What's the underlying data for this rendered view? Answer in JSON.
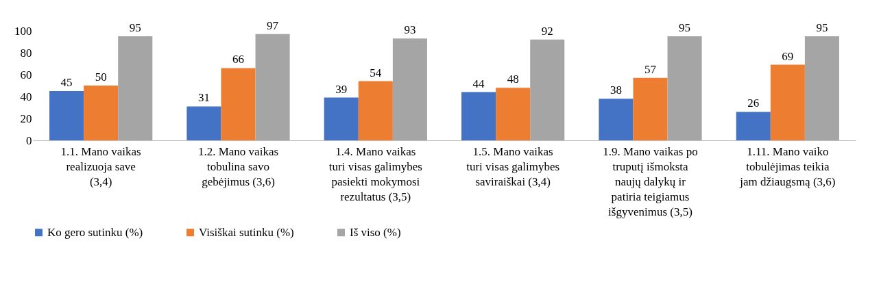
{
  "chart_data": {
    "type": "bar",
    "categories": [
      "1.1. Mano vaikas realizuoja save (3,4)",
      "1.2. Mano vaikas tobulina savo gebėjimus (3,6)",
      "1.4. Mano vaikas turi visas galimybes pasiekti mokymosi rezultatus (3,5)",
      "1.5. Mano vaikas turi visas galimybes saviraiškai (3,4)",
      "1.9. Mano vaikas po truputį išmoksta naujų dalykų ir patiria teigiamus išgyvenimus (3,5)",
      "1.11. Mano vaiko tobulėjimas teikia jam džiaugsmą (3,6)"
    ],
    "series": [
      {
        "name": "Ko gero sutinku (%)",
        "color": "#4472c4",
        "values": [
          45,
          31,
          39,
          44,
          38,
          26
        ]
      },
      {
        "name": "Visiškai sutinku (%)",
        "color": "#ed7d31",
        "values": [
          50,
          66,
          54,
          48,
          57,
          69
        ]
      },
      {
        "name": "Iš viso  (%)",
        "color": "#a5a5a5",
        "values": [
          95,
          97,
          93,
          92,
          95,
          95
        ]
      }
    ],
    "ylim": [
      0,
      100
    ],
    "yticks": [
      0,
      20,
      40,
      60,
      80,
      100
    ],
    "grid": false,
    "legend": "bottom",
    "data_labels": true
  }
}
